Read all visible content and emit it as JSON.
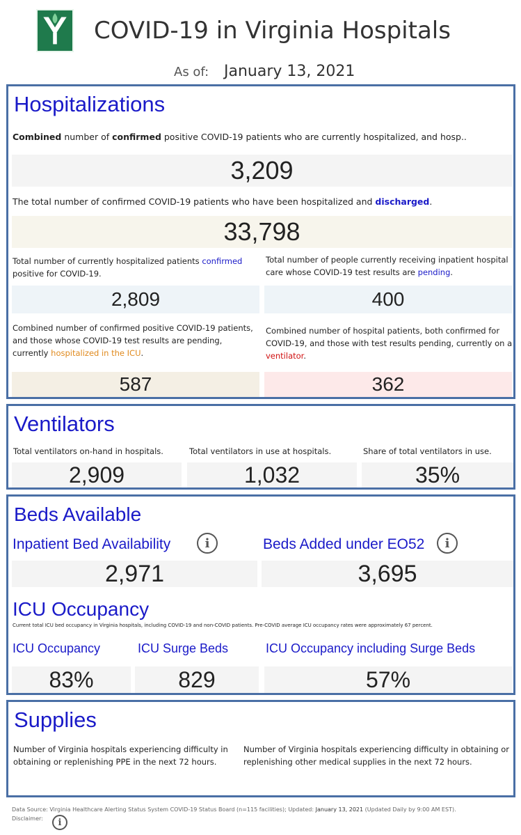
{
  "header": {
    "title": "COVID-19 in Virginia Hospitals",
    "as_of_label": "As of:",
    "as_of_date": "January 13, 2021",
    "logo_icon": "vhha-logo-icon"
  },
  "hospitalizations": {
    "title": "Hospitalizations",
    "combined_desc": {
      "p1": "Combined",
      "p2": " number of ",
      "p3": "confirmed",
      "p4": " positive COVID-19 patients who are currently hospitalized, and hosp.."
    },
    "combined_value": "3,209",
    "discharged_desc": {
      "p1": "The total number of confirmed COVID-19 patients who have been hospitalized and ",
      "p2": "discharged",
      "p3": "."
    },
    "discharged_value": "33,798",
    "confirmed_desc": {
      "p1": "Total number of currently hospitalized patients ",
      "p2": "confirmed",
      "p3": " positive for COVID-19."
    },
    "confirmed_value": "2,809",
    "pending_desc": {
      "p1": "Total number of people currently receiving inpatient hospital care whose COVID-19 test results are ",
      "p2": "pending",
      "p3": "."
    },
    "pending_value": "400",
    "icu_desc": {
      "p1": "Combined number of confirmed positive COVID-19 patients, and those whose COVID-19 test results are pending, currently ",
      "p2": "hospitalized in the ICU",
      "p3": "."
    },
    "icu_value": "587",
    "vent_desc": {
      "p1": "Combined number of hospital patients, both confirmed for COVID-19, and those with test results pending, currently on a ",
      "p2": "ventilator",
      "p3": "."
    },
    "vent_value": "362"
  },
  "ventilators": {
    "title": "Ventilators",
    "onhand_label": "Total ventilators on-hand in hospitals.",
    "onhand_value": "2,909",
    "inuse_label": "Total ventilators in use at hospitals.",
    "inuse_value": "1,032",
    "share_label": "Share of total ventilators in use.",
    "share_value": "35%"
  },
  "beds": {
    "title": "Beds Available",
    "inpatient_label": "Inpatient Bed Availability",
    "inpatient_value": "2,971",
    "eo52_label": "Beds Added under EO52",
    "eo52_value": "3,695",
    "info_glyph": "i",
    "icu_title": "ICU Occupancy",
    "icu_desc": "Current total ICU bed occupancy in Virginia hospitals, including COVID-19 and non-COVID patients. Pre-COVID average ICU occupancy rates were approximately 67 percent.",
    "icu_occ_label": "ICU Occupancy",
    "icu_occ_value": "83%",
    "surge_label": "ICU Surge Beds",
    "surge_value": "829",
    "incl_label": "ICU Occupancy including Surge Beds",
    "incl_value": "57%"
  },
  "supplies": {
    "title": "Supplies",
    "ppe_desc": "Number of Virginia hospitals experiencing difficulty in obtaining or replenishing PPE in the next 72 hours.",
    "other_desc": "Number of Virginia hospitals experiencing difficulty in obtaining or replenishing other medical supplies in the next 72 hours."
  },
  "footer": {
    "source_p1": "Data Source: Virginia Healthcare Alerting Status System COVID-19 Status Board (n=115 facilities); Updated: ",
    "source_date": "January 13, 2021",
    "source_p3": " (Updated Daily by 9:00 AM EST).",
    "disclaimer_label": "Disclaimer:"
  }
}
